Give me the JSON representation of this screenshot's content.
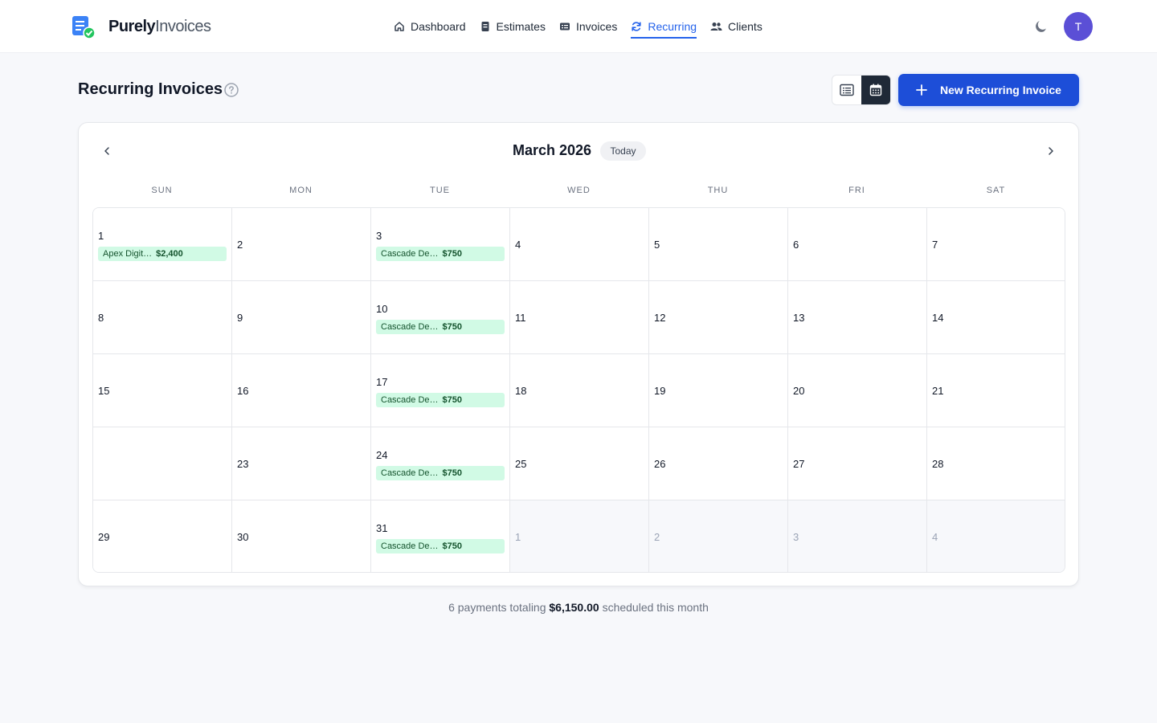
{
  "app": {
    "brand_bold": "Purely",
    "brand_light": "Invoices"
  },
  "nav": [
    {
      "label": "Dashboard",
      "icon": "home-icon",
      "active": false
    },
    {
      "label": "Estimates",
      "icon": "document-icon",
      "active": false
    },
    {
      "label": "Invoices",
      "icon": "invoice-icon",
      "active": false
    },
    {
      "label": "Recurring",
      "icon": "refresh-icon",
      "active": true
    },
    {
      "label": "Clients",
      "icon": "users-icon",
      "active": false
    }
  ],
  "user": {
    "initial": "T",
    "avatar_color": "#5b4fd6"
  },
  "page": {
    "title": "Recurring Invoices",
    "new_button": "New Recurring Invoice"
  },
  "calendar": {
    "month_label": "March 2026",
    "today_label": "Today",
    "weekdays": [
      "SUN",
      "MON",
      "TUE",
      "WED",
      "THU",
      "FRI",
      "SAT"
    ],
    "weeks": [
      [
        {
          "day": "1",
          "events": [
            {
              "name": "Apex Digit…",
              "amount": "$2,400"
            }
          ]
        },
        {
          "day": "2"
        },
        {
          "day": "3",
          "events": [
            {
              "name": "Cascade De…",
              "amount": "$750"
            }
          ]
        },
        {
          "day": "4"
        },
        {
          "day": "5"
        },
        {
          "day": "6"
        },
        {
          "day": "7"
        }
      ],
      [
        {
          "day": "8"
        },
        {
          "day": "9"
        },
        {
          "day": "10",
          "events": [
            {
              "name": "Cascade De…",
              "amount": "$750"
            }
          ]
        },
        {
          "day": "11"
        },
        {
          "day": "12"
        },
        {
          "day": "13"
        },
        {
          "day": "14"
        }
      ],
      [
        {
          "day": "15"
        },
        {
          "day": "16"
        },
        {
          "day": "17",
          "events": [
            {
              "name": "Cascade De…",
              "amount": "$750"
            }
          ]
        },
        {
          "day": "18"
        },
        {
          "day": "19"
        },
        {
          "day": "20"
        },
        {
          "day": "21"
        }
      ],
      [
        {
          "day": ""
        },
        {
          "day": "23"
        },
        {
          "day": "24",
          "events": [
            {
              "name": "Cascade De…",
              "amount": "$750"
            }
          ]
        },
        {
          "day": "25"
        },
        {
          "day": "26"
        },
        {
          "day": "27"
        },
        {
          "day": "28"
        }
      ],
      [
        {
          "day": "29"
        },
        {
          "day": "30"
        },
        {
          "day": "31",
          "events": [
            {
              "name": "Cascade De…",
              "amount": "$750"
            }
          ]
        },
        {
          "day": "1",
          "other": true
        },
        {
          "day": "2",
          "other": true
        },
        {
          "day": "3",
          "other": true
        },
        {
          "day": "4",
          "other": true
        }
      ]
    ]
  },
  "summary": {
    "prefix": "6 payments totaling ",
    "total": "$6,150.00",
    "suffix": " scheduled this month"
  },
  "colors": {
    "accent": "#2563eb",
    "primary_button": "#1d4ed8",
    "event_bg": "#d1fae5",
    "event_text": "#14532d"
  }
}
